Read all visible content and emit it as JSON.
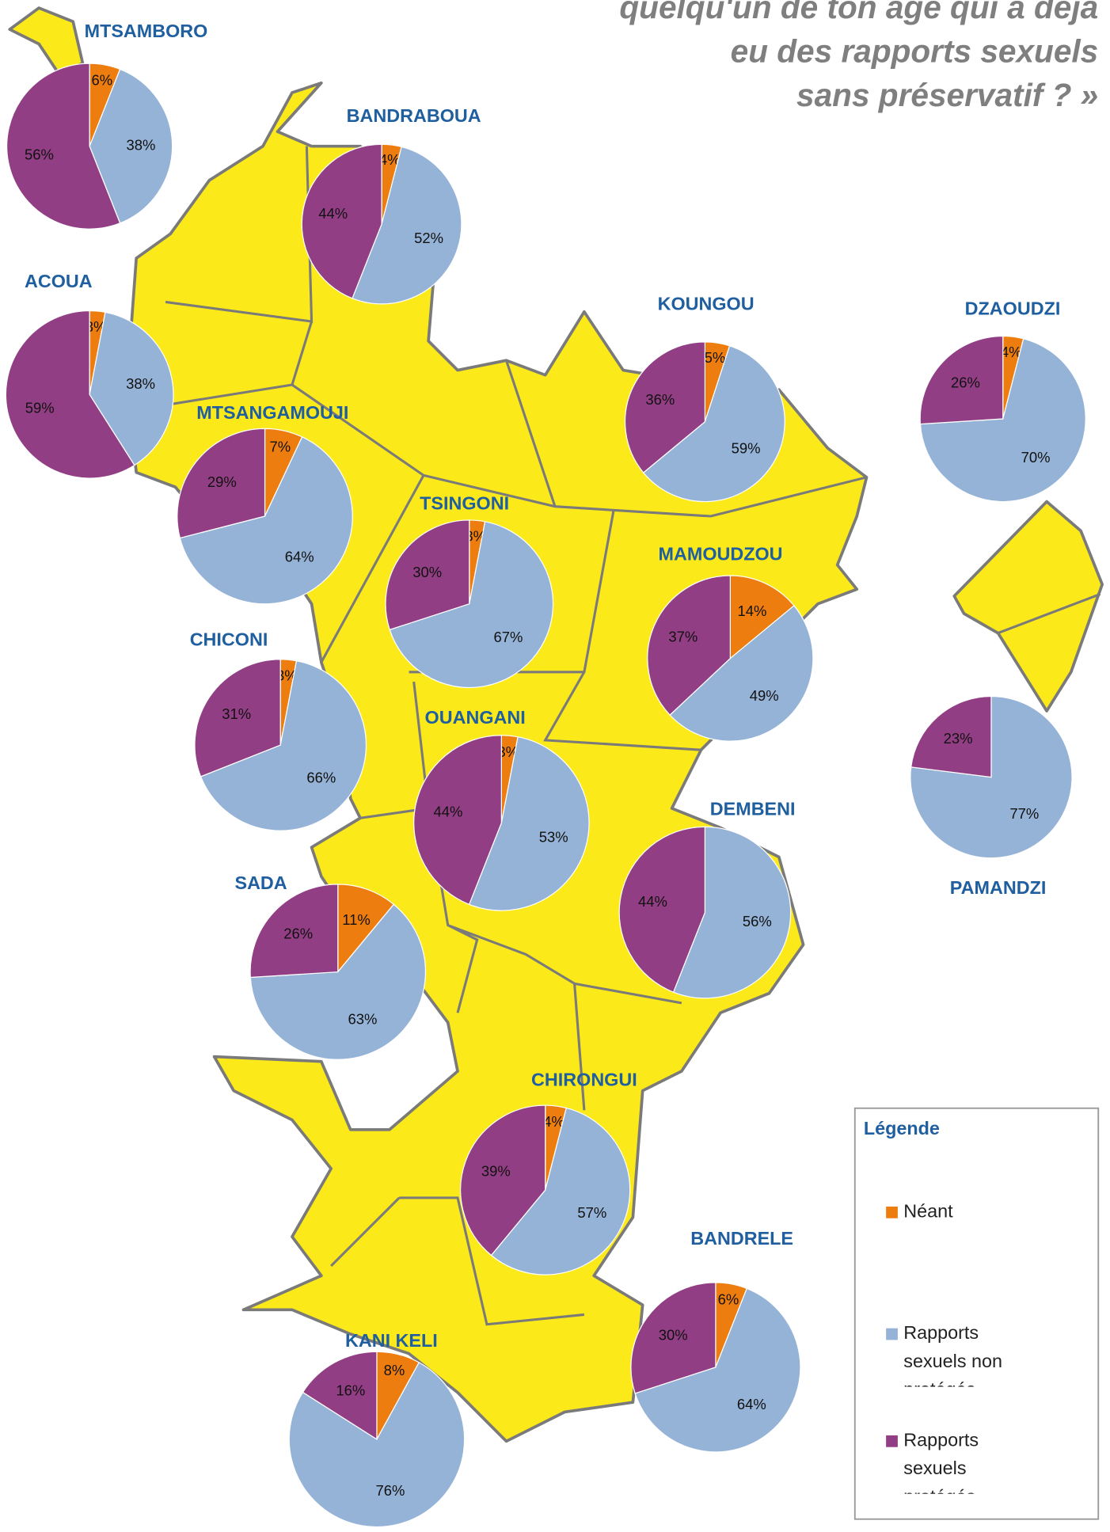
{
  "title_lines": [
    "quelqu'un de ton âge qui a déjà",
    "eu des rapports sexuels",
    "sans préservatif ? »"
  ],
  "legend": {
    "title": "Légende",
    "items": [
      {
        "label": "Néant",
        "color": "#ed7d0f"
      },
      {
        "label": "Rapports sexuels non protégés",
        "color": "#95b3d7"
      },
      {
        "label": "Rapports sexuels protégés",
        "color": "#923e84"
      }
    ]
  },
  "communes": [
    {
      "name": "MTSAMBORO",
      "values": [
        6,
        38,
        56
      ],
      "value_labels": [
        "6%",
        "38%",
        "56%"
      ]
    },
    {
      "name": "BANDRABOUA",
      "values": [
        4,
        52,
        44
      ],
      "value_labels": [
        "4%",
        "52%",
        "44%"
      ]
    },
    {
      "name": "ACOUA",
      "values": [
        3,
        38,
        59
      ],
      "value_labels": [
        "3%",
        "38%",
        "59%"
      ]
    },
    {
      "name": "KOUNGOU",
      "values": [
        5,
        59,
        36
      ],
      "value_labels": [
        "5%",
        "59%",
        "36%"
      ]
    },
    {
      "name": "DZAOUDZI",
      "values": [
        4,
        70,
        26
      ],
      "value_labels": [
        "4%",
        "70%",
        "26%"
      ]
    },
    {
      "name": "MTSANGAMOUJI",
      "values": [
        7,
        64,
        29
      ],
      "value_labels": [
        "7%",
        "64%",
        "29%"
      ]
    },
    {
      "name": "TSINGONI",
      "values": [
        3,
        67,
        30
      ],
      "value_labels": [
        "3%",
        "67%",
        "30%"
      ]
    },
    {
      "name": "MAMOUDZOU",
      "values": [
        14,
        49,
        37
      ],
      "value_labels": [
        "14%",
        "49%",
        "37%"
      ]
    },
    {
      "name": "CHICONI",
      "values": [
        3,
        66,
        31
      ],
      "value_labels": [
        "3%",
        "66%",
        "31%"
      ]
    },
    {
      "name": "OUANGANI",
      "values": [
        3,
        53,
        44
      ],
      "value_labels": [
        "3%",
        "53%",
        "44%"
      ]
    },
    {
      "name": "PAMANDZI",
      "values": [
        null,
        77,
        23
      ],
      "value_labels": [
        null,
        "77%",
        "23%"
      ]
    },
    {
      "name": "DEMBENI",
      "values": [
        null,
        56,
        44
      ],
      "value_labels": [
        null,
        "56%",
        "44%"
      ]
    },
    {
      "name": "SADA",
      "values": [
        11,
        63,
        26
      ],
      "value_labels": [
        "11%",
        "63%",
        "26%"
      ]
    },
    {
      "name": "CHIRONGUI",
      "values": [
        4,
        57,
        39
      ],
      "value_labels": [
        "4%",
        "57%",
        "39%"
      ]
    },
    {
      "name": "BANDRELE",
      "values": [
        6,
        64,
        30
      ],
      "value_labels": [
        "6%",
        "64%",
        "30%"
      ]
    },
    {
      "name": "KANI KELI",
      "values": [
        8,
        76,
        16
      ],
      "value_labels": [
        "8%",
        "76%",
        "16%"
      ]
    }
  ]
}
